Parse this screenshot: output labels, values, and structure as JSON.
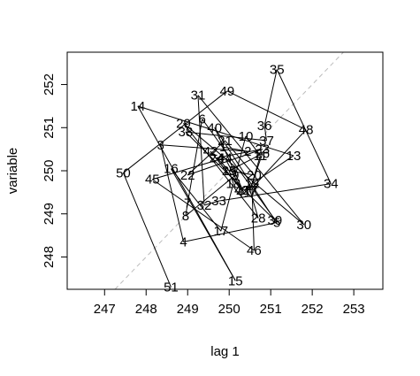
{
  "chart_data": {
    "type": "line",
    "title": "",
    "xlabel": "lag 1",
    "ylabel": "variable",
    "xlim": [
      246.1,
      253.7
    ],
    "ylim": [
      247.25,
      252.75
    ],
    "x_ticks": [
      "247",
      "248",
      "249",
      "250",
      "251",
      "252",
      "253"
    ],
    "y_ticks": [
      "248",
      "249",
      "250",
      "251",
      "252"
    ],
    "reference_line": "y = x (dashed, light gray)",
    "colors": {
      "path": "#000000",
      "reference": "#bbbbbb",
      "frame": "#000000"
    },
    "points": [
      {
        "label": "1",
        "x": 249.85,
        "y": 250.55
      },
      {
        "label": "2",
        "x": 250.45,
        "y": 250.45
      },
      {
        "label": "3",
        "x": 248.35,
        "y": 250.6
      },
      {
        "label": "4",
        "x": 248.9,
        "y": 248.35
      },
      {
        "label": "5",
        "x": 251.15,
        "y": 248.8
      },
      {
        "label": "6",
        "x": 249.35,
        "y": 251.2
      },
      {
        "label": "7",
        "x": 249.0,
        "y": 249.25
      },
      {
        "label": "8",
        "x": 248.95,
        "y": 248.95
      },
      {
        "label": "9",
        "x": 250.15,
        "y": 249.9
      },
      {
        "label": "10",
        "x": 250.4,
        "y": 250.8
      },
      {
        "label": "11",
        "x": 250.75,
        "y": 250.35
      },
      {
        "label": "12",
        "x": 250.55,
        "y": 249.7
      },
      {
        "label": "13",
        "x": 251.55,
        "y": 250.35
      },
      {
        "label": "14",
        "x": 247.8,
        "y": 251.5
      },
      {
        "label": "15",
        "x": 250.15,
        "y": 247.45
      },
      {
        "label": "16",
        "x": 248.6,
        "y": 250.05
      },
      {
        "label": "17",
        "x": 249.8,
        "y": 248.6
      },
      {
        "label": "18",
        "x": 250.1,
        "y": 249.7
      },
      {
        "label": "19",
        "x": 250.0,
        "y": 250.0
      },
      {
        "label": "20",
        "x": 250.6,
        "y": 249.9
      },
      {
        "label": "21",
        "x": 249.9,
        "y": 250.7
      },
      {
        "label": "22",
        "x": 249.0,
        "y": 249.9
      },
      {
        "label": "23",
        "x": 250.8,
        "y": 250.5
      },
      {
        "label": "24",
        "x": 249.7,
        "y": 250.3
      },
      {
        "label": "25",
        "x": 250.0,
        "y": 250.0
      },
      {
        "label": "26",
        "x": 250.8,
        "y": 250.4
      },
      {
        "label": "27",
        "x": 250.5,
        "y": 249.55
      },
      {
        "label": "28",
        "x": 250.7,
        "y": 248.9
      },
      {
        "label": "29",
        "x": 248.9,
        "y": 251.1
      },
      {
        "label": "30",
        "x": 251.8,
        "y": 248.75
      },
      {
        "label": "31",
        "x": 249.25,
        "y": 251.75
      },
      {
        "label": "32",
        "x": 249.4,
        "y": 249.2
      },
      {
        "label": "33",
        "x": 249.75,
        "y": 249.3
      },
      {
        "label": "34",
        "x": 252.45,
        "y": 249.7
      },
      {
        "label": "35",
        "x": 251.15,
        "y": 252.35
      },
      {
        "label": "36",
        "x": 250.85,
        "y": 251.05
      },
      {
        "label": "37",
        "x": 250.9,
        "y": 250.7
      },
      {
        "label": "38",
        "x": 248.95,
        "y": 250.9
      },
      {
        "label": "39",
        "x": 251.1,
        "y": 248.85
      },
      {
        "label": "40",
        "x": 249.65,
        "y": 251.0
      },
      {
        "label": "41",
        "x": 250.35,
        "y": 249.5
      },
      {
        "label": "42",
        "x": 249.55,
        "y": 250.45
      },
      {
        "label": "43",
        "x": 250.3,
        "y": 249.55
      },
      {
        "label": "44",
        "x": 249.9,
        "y": 250.3
      },
      {
        "label": "45",
        "x": 248.15,
        "y": 249.8
      },
      {
        "label": "46",
        "x": 250.6,
        "y": 248.15
      },
      {
        "label": "47",
        "x": 250.55,
        "y": 249.6
      },
      {
        "label": "48",
        "x": 251.85,
        "y": 250.95
      },
      {
        "label": "49",
        "x": 249.95,
        "y": 251.85
      },
      {
        "label": "50",
        "x": 247.45,
        "y": 249.95
      },
      {
        "label": "51",
        "x": 248.6,
        "y": 247.3
      }
    ]
  }
}
